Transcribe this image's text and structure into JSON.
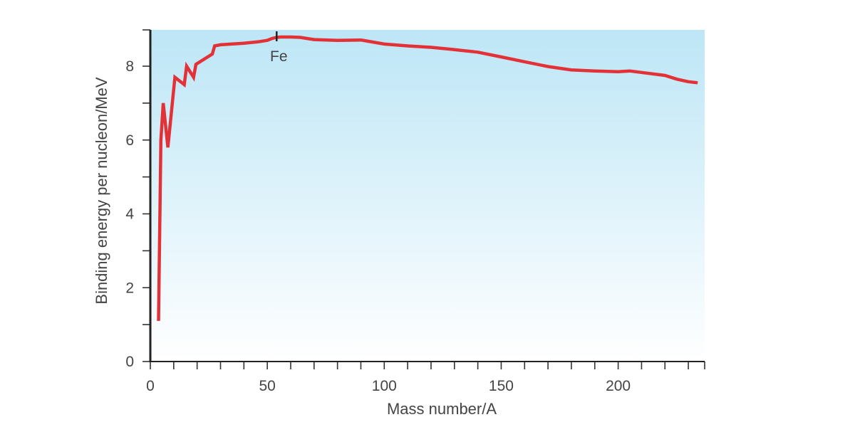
{
  "chart_data": {
    "type": "line",
    "title": "",
    "xlabel": "Mass number/A",
    "ylabel": "Binding energy per nucleon/MeV",
    "xlim": [
      0,
      237
    ],
    "ylim": [
      0,
      9
    ],
    "x_ticks": [
      0,
      50,
      100,
      150,
      200
    ],
    "y_ticks": [
      0,
      2,
      4,
      6,
      8
    ],
    "x_minor_step": 10,
    "y_minor_step": 1,
    "grid": false,
    "legend": "none",
    "background_gradient": {
      "top": "#bde6f6",
      "bottom": "#ffffff"
    },
    "line_color": "#e23137",
    "series": [
      {
        "x": [
          3.5,
          4.5,
          5.5,
          7.5,
          10.5,
          14.5,
          15.5,
          18.5,
          19.5,
          26.5,
          27.5,
          30,
          40,
          46,
          50,
          52,
          54,
          56,
          60,
          64,
          70,
          80,
          90,
          100,
          110,
          120,
          130,
          140,
          150,
          160,
          170,
          180,
          190,
          200,
          205,
          210,
          220,
          225,
          230,
          234
        ],
        "y": [
          1.1,
          6.0,
          7.0,
          5.8,
          7.7,
          7.5,
          8.0,
          7.7,
          8.05,
          8.33,
          8.55,
          8.58,
          8.62,
          8.66,
          8.7,
          8.75,
          8.78,
          8.79,
          8.79,
          8.78,
          8.72,
          8.7,
          8.71,
          8.6,
          8.55,
          8.51,
          8.45,
          8.38,
          8.25,
          8.12,
          7.99,
          7.9,
          7.87,
          7.85,
          7.87,
          7.83,
          7.75,
          7.65,
          7.58,
          7.55
        ]
      }
    ],
    "annotations": [
      {
        "text": "Fe",
        "x": 54
      }
    ]
  }
}
